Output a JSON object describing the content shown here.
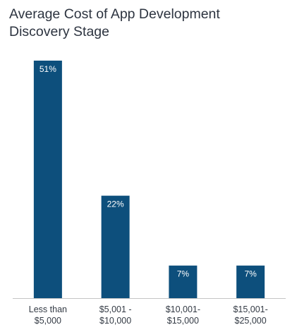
{
  "chart_data": {
    "type": "bar",
    "title_lines": [
      "Average Cost of App Development",
      "Discovery Stage"
    ],
    "categories": [
      [
        "Less than",
        "$5,000"
      ],
      [
        "$5,001 -",
        "$10,000"
      ],
      [
        "$10,001-",
        "$15,000"
      ],
      [
        "$15,001-",
        "$25,000"
      ]
    ],
    "values": [
      51,
      22,
      7,
      7
    ],
    "data_labels": [
      "51%",
      "22%",
      "7%",
      "7%"
    ],
    "ylim": [
      0,
      51
    ],
    "grid": false,
    "bar_color": "#0d4f7c",
    "axis_color": "#c4c4c4",
    "xlabel": "",
    "ylabel": ""
  }
}
